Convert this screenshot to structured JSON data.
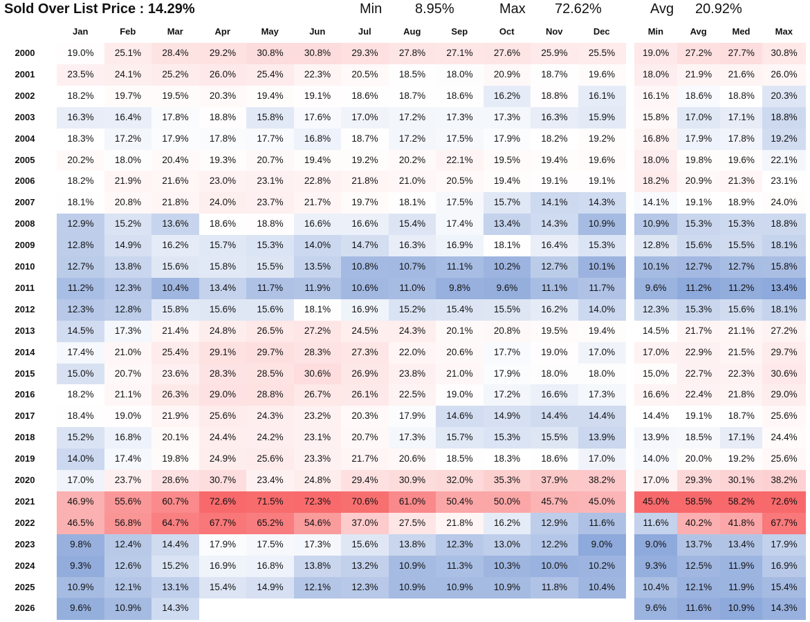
{
  "header": {
    "title": "Sold Over List Price : 14.29%",
    "min_label": "Min",
    "min_value": "8.95%",
    "max_label": "Max",
    "max_value": "72.62%",
    "avg_label": "Avg",
    "avg_value": "20.92%"
  },
  "colors": {
    "low": "#8EA9DB",
    "mid": "#FFFFFF",
    "high": "#F8696B"
  },
  "chart_data": {
    "type": "heatmap",
    "title": "Sold Over List Price : 14.29%",
    "months": [
      "Jan",
      "Feb",
      "Mar",
      "Apr",
      "May",
      "Jun",
      "Jul",
      "Aug",
      "Sep",
      "Oct",
      "Nov",
      "Dec"
    ],
    "summary_headers": [
      "Min",
      "Avg",
      "Med",
      "Max"
    ],
    "rows": [
      {
        "year": "2000",
        "m": [
          "19.0%",
          "25.1%",
          "28.4%",
          "29.2%",
          "30.8%",
          "30.8%",
          "29.3%",
          "27.8%",
          "27.1%",
          "27.6%",
          "25.9%",
          "25.5%"
        ],
        "s": [
          "19.0%",
          "27.2%",
          "27.7%",
          "30.8%"
        ]
      },
      {
        "year": "2001",
        "m": [
          "23.5%",
          "24.1%",
          "25.2%",
          "26.0%",
          "25.4%",
          "22.3%",
          "20.5%",
          "18.5%",
          "18.0%",
          "20.9%",
          "18.7%",
          "19.6%"
        ],
        "s": [
          "18.0%",
          "21.9%",
          "21.6%",
          "26.0%"
        ]
      },
      {
        "year": "2002",
        "m": [
          "18.2%",
          "19.7%",
          "19.5%",
          "20.3%",
          "19.4%",
          "19.1%",
          "18.6%",
          "18.7%",
          "18.6%",
          "16.2%",
          "18.8%",
          "16.1%"
        ],
        "s": [
          "16.1%",
          "18.6%",
          "18.8%",
          "20.3%"
        ]
      },
      {
        "year": "2003",
        "m": [
          "16.3%",
          "16.4%",
          "17.8%",
          "18.8%",
          "15.8%",
          "17.6%",
          "17.0%",
          "17.2%",
          "17.3%",
          "17.3%",
          "16.3%",
          "15.9%"
        ],
        "s": [
          "15.8%",
          "17.0%",
          "17.1%",
          "18.8%"
        ]
      },
      {
        "year": "2004",
        "m": [
          "18.3%",
          "17.2%",
          "17.9%",
          "17.8%",
          "17.7%",
          "16.8%",
          "18.7%",
          "17.2%",
          "17.5%",
          "17.9%",
          "18.2%",
          "19.2%"
        ],
        "s": [
          "16.8%",
          "17.9%",
          "17.8%",
          "19.2%"
        ]
      },
      {
        "year": "2005",
        "m": [
          "20.2%",
          "18.0%",
          "20.4%",
          "19.3%",
          "20.7%",
          "19.4%",
          "19.2%",
          "20.2%",
          "22.1%",
          "19.5%",
          "19.4%",
          "19.6%"
        ],
        "s": [
          "18.0%",
          "19.8%",
          "19.6%",
          "22.1%"
        ]
      },
      {
        "year": "2006",
        "m": [
          "18.2%",
          "21.9%",
          "21.6%",
          "23.0%",
          "23.1%",
          "22.8%",
          "21.8%",
          "21.0%",
          "20.5%",
          "19.4%",
          "19.1%",
          "19.1%"
        ],
        "s": [
          "18.2%",
          "20.9%",
          "21.3%",
          "23.1%"
        ]
      },
      {
        "year": "2007",
        "m": [
          "18.1%",
          "20.8%",
          "21.8%",
          "24.0%",
          "23.7%",
          "21.7%",
          "19.7%",
          "18.1%",
          "17.5%",
          "15.7%",
          "14.1%",
          "14.3%"
        ],
        "s": [
          "14.1%",
          "19.1%",
          "18.9%",
          "24.0%"
        ]
      },
      {
        "year": "2008",
        "m": [
          "12.9%",
          "15.2%",
          "13.6%",
          "18.6%",
          "18.8%",
          "16.6%",
          "16.6%",
          "15.4%",
          "17.4%",
          "13.4%",
          "14.3%",
          "10.9%"
        ],
        "s": [
          "10.9%",
          "15.3%",
          "15.3%",
          "18.8%"
        ]
      },
      {
        "year": "2009",
        "m": [
          "12.8%",
          "14.9%",
          "16.2%",
          "15.7%",
          "15.3%",
          "14.0%",
          "14.7%",
          "16.3%",
          "16.9%",
          "18.1%",
          "16.4%",
          "15.3%"
        ],
        "s": [
          "12.8%",
          "15.6%",
          "15.5%",
          "18.1%"
        ]
      },
      {
        "year": "2010",
        "m": [
          "12.7%",
          "13.8%",
          "15.6%",
          "15.8%",
          "15.5%",
          "13.5%",
          "10.8%",
          "10.7%",
          "11.1%",
          "10.2%",
          "12.7%",
          "10.1%"
        ],
        "s": [
          "10.1%",
          "12.7%",
          "12.7%",
          "15.8%"
        ]
      },
      {
        "year": "2011",
        "m": [
          "11.2%",
          "12.3%",
          "10.4%",
          "13.4%",
          "11.7%",
          "11.9%",
          "10.6%",
          "11.0%",
          "9.8%",
          "9.6%",
          "11.1%",
          "11.7%"
        ],
        "s": [
          "9.6%",
          "11.2%",
          "11.2%",
          "13.4%"
        ]
      },
      {
        "year": "2012",
        "m": [
          "12.3%",
          "12.8%",
          "15.8%",
          "15.6%",
          "15.6%",
          "18.1%",
          "16.9%",
          "15.2%",
          "15.4%",
          "15.5%",
          "16.2%",
          "14.0%"
        ],
        "s": [
          "12.3%",
          "15.3%",
          "15.6%",
          "18.1%"
        ]
      },
      {
        "year": "2013",
        "m": [
          "14.5%",
          "17.3%",
          "21.4%",
          "24.8%",
          "26.5%",
          "27.2%",
          "24.5%",
          "24.3%",
          "20.1%",
          "20.8%",
          "19.5%",
          "19.4%"
        ],
        "s": [
          "14.5%",
          "21.7%",
          "21.1%",
          "27.2%"
        ]
      },
      {
        "year": "2014",
        "m": [
          "17.4%",
          "21.0%",
          "25.4%",
          "29.1%",
          "29.7%",
          "28.3%",
          "27.3%",
          "22.0%",
          "20.6%",
          "17.7%",
          "19.0%",
          "17.0%"
        ],
        "s": [
          "17.0%",
          "22.9%",
          "21.5%",
          "29.7%"
        ]
      },
      {
        "year": "2015",
        "m": [
          "15.0%",
          "20.7%",
          "23.6%",
          "28.3%",
          "28.5%",
          "30.6%",
          "26.9%",
          "23.8%",
          "21.0%",
          "17.9%",
          "18.0%",
          "18.0%"
        ],
        "s": [
          "15.0%",
          "22.7%",
          "22.3%",
          "30.6%"
        ]
      },
      {
        "year": "2016",
        "m": [
          "18.2%",
          "21.1%",
          "26.3%",
          "29.0%",
          "28.8%",
          "26.7%",
          "26.1%",
          "22.5%",
          "19.0%",
          "17.2%",
          "16.6%",
          "17.3%"
        ],
        "s": [
          "16.6%",
          "22.4%",
          "21.8%",
          "29.0%"
        ]
      },
      {
        "year": "2017",
        "m": [
          "18.4%",
          "19.0%",
          "21.9%",
          "25.6%",
          "24.3%",
          "23.2%",
          "20.3%",
          "17.9%",
          "14.6%",
          "14.9%",
          "14.4%",
          "14.4%"
        ],
        "s": [
          "14.4%",
          "19.1%",
          "18.7%",
          "25.6%"
        ]
      },
      {
        "year": "2018",
        "m": [
          "15.2%",
          "16.8%",
          "20.1%",
          "24.4%",
          "24.2%",
          "23.1%",
          "20.7%",
          "17.3%",
          "15.7%",
          "15.3%",
          "15.5%",
          "13.9%"
        ],
        "s": [
          "13.9%",
          "18.5%",
          "17.1%",
          "24.4%"
        ]
      },
      {
        "year": "2019",
        "m": [
          "14.0%",
          "17.4%",
          "19.8%",
          "24.9%",
          "25.6%",
          "23.3%",
          "21.7%",
          "20.6%",
          "18.5%",
          "18.3%",
          "18.6%",
          "17.0%"
        ],
        "s": [
          "14.0%",
          "20.0%",
          "19.2%",
          "25.6%"
        ]
      },
      {
        "year": "2020",
        "m": [
          "17.0%",
          "23.7%",
          "28.6%",
          "30.7%",
          "23.4%",
          "24.8%",
          "29.4%",
          "30.9%",
          "32.0%",
          "35.3%",
          "37.9%",
          "38.2%"
        ],
        "s": [
          "17.0%",
          "29.3%",
          "30.1%",
          "38.2%"
        ]
      },
      {
        "year": "2021",
        "m": [
          "46.9%",
          "55.6%",
          "60.7%",
          "72.6%",
          "71.5%",
          "72.3%",
          "70.6%",
          "61.0%",
          "50.4%",
          "50.0%",
          "45.7%",
          "45.0%"
        ],
        "s": [
          "45.0%",
          "58.5%",
          "58.2%",
          "72.6%"
        ]
      },
      {
        "year": "2022",
        "m": [
          "46.5%",
          "56.8%",
          "64.7%",
          "67.7%",
          "65.2%",
          "54.6%",
          "37.0%",
          "27.5%",
          "21.8%",
          "16.2%",
          "12.9%",
          "11.6%"
        ],
        "s": [
          "11.6%",
          "40.2%",
          "41.8%",
          "67.7%"
        ]
      },
      {
        "year": "2023",
        "m": [
          "9.8%",
          "12.4%",
          "14.4%",
          "17.9%",
          "17.5%",
          "17.3%",
          "15.6%",
          "13.8%",
          "12.3%",
          "13.0%",
          "12.2%",
          "9.0%"
        ],
        "s": [
          "9.0%",
          "13.7%",
          "13.4%",
          "17.9%"
        ]
      },
      {
        "year": "2024",
        "m": [
          "9.3%",
          "12.6%",
          "15.2%",
          "16.9%",
          "16.8%",
          "13.8%",
          "13.2%",
          "10.9%",
          "11.3%",
          "10.3%",
          "10.0%",
          "10.2%"
        ],
        "s": [
          "9.3%",
          "12.5%",
          "11.9%",
          "16.9%"
        ]
      },
      {
        "year": "2025",
        "m": [
          "10.9%",
          "12.1%",
          "13.1%",
          "15.4%",
          "14.9%",
          "12.1%",
          "12.3%",
          "10.9%",
          "10.9%",
          "10.9%",
          "11.8%",
          "10.4%"
        ],
        "s": [
          "10.4%",
          "12.1%",
          "11.9%",
          "15.4%"
        ]
      },
      {
        "year": "2026",
        "m": [
          "9.6%",
          "10.9%",
          "14.3%"
        ],
        "s": [
          "9.6%",
          "11.6%",
          "10.9%",
          "14.3%"
        ]
      }
    ]
  }
}
